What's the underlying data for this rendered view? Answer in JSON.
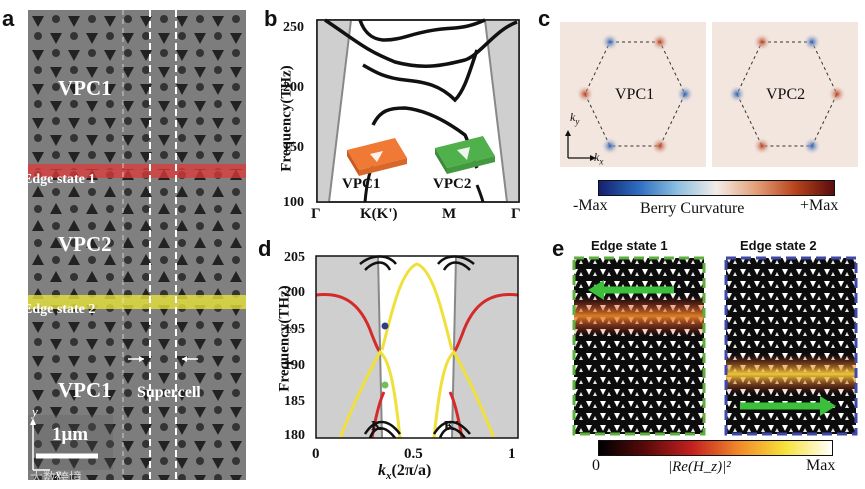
{
  "panels": {
    "a": {
      "letter": "a",
      "labels": {
        "vpc1_top": "VPC1",
        "edge1": "Edge state 1",
        "vpc2": "VPC2",
        "edge2": "Edge state 2",
        "vpc1_bottom": "VPC1",
        "supercell": "Supercell",
        "scale": "1μm",
        "axis_y": "y",
        "axis_x": "x"
      },
      "colors": {
        "edge1": "#e0393a",
        "edge2": "#e8e23a"
      }
    },
    "b": {
      "letter": "b",
      "ylabel": "Frequency(THz)",
      "yticks": [
        "250",
        "200",
        "150",
        "100"
      ],
      "xticks": [
        "Γ",
        "K(K')",
        "M",
        "Γ"
      ],
      "legend": {
        "vpc1": "VPC1",
        "vpc2": "VPC2"
      },
      "colors": {
        "vpc1": "#f07a35",
        "vpc2": "#4fb04c",
        "gap": "#cfcfcf"
      }
    },
    "c": {
      "letter": "c",
      "labels": {
        "vpc1": "VPC1",
        "vpc2": "VPC2",
        "ky": "k",
        "ky_sub": "y",
        "kx": "k",
        "kx_sub": "x"
      },
      "colorbar": {
        "min": "-Max",
        "title": "Berry Curvature",
        "max": "+Max"
      }
    },
    "d": {
      "letter": "d",
      "ylabel": "Frequency(THz)",
      "xlabel_k": "k",
      "xlabel_sub": "x",
      "xlabel_rest": "(2π/a)",
      "yticks": [
        "205",
        "200",
        "195",
        "190",
        "185",
        "180"
      ],
      "xticks": [
        "0",
        "0.5",
        "1"
      ],
      "valley_labels": {
        "k": "K",
        "kp": "K'"
      },
      "colors": {
        "red": "#d42a2a",
        "yellow": "#efe03a"
      }
    },
    "e": {
      "letter": "e",
      "titles": {
        "left": "Edge state 1",
        "right": "Edge state 2"
      },
      "colorbar": {
        "min": "0",
        "title": "|Re(H_z)|²",
        "max": "Max"
      },
      "colors": {
        "left_border": "#5faf3c",
        "right_border": "#3f4aa8",
        "arrow": "#3cc03c"
      }
    }
  },
  "watermark": "大数跨境"
}
